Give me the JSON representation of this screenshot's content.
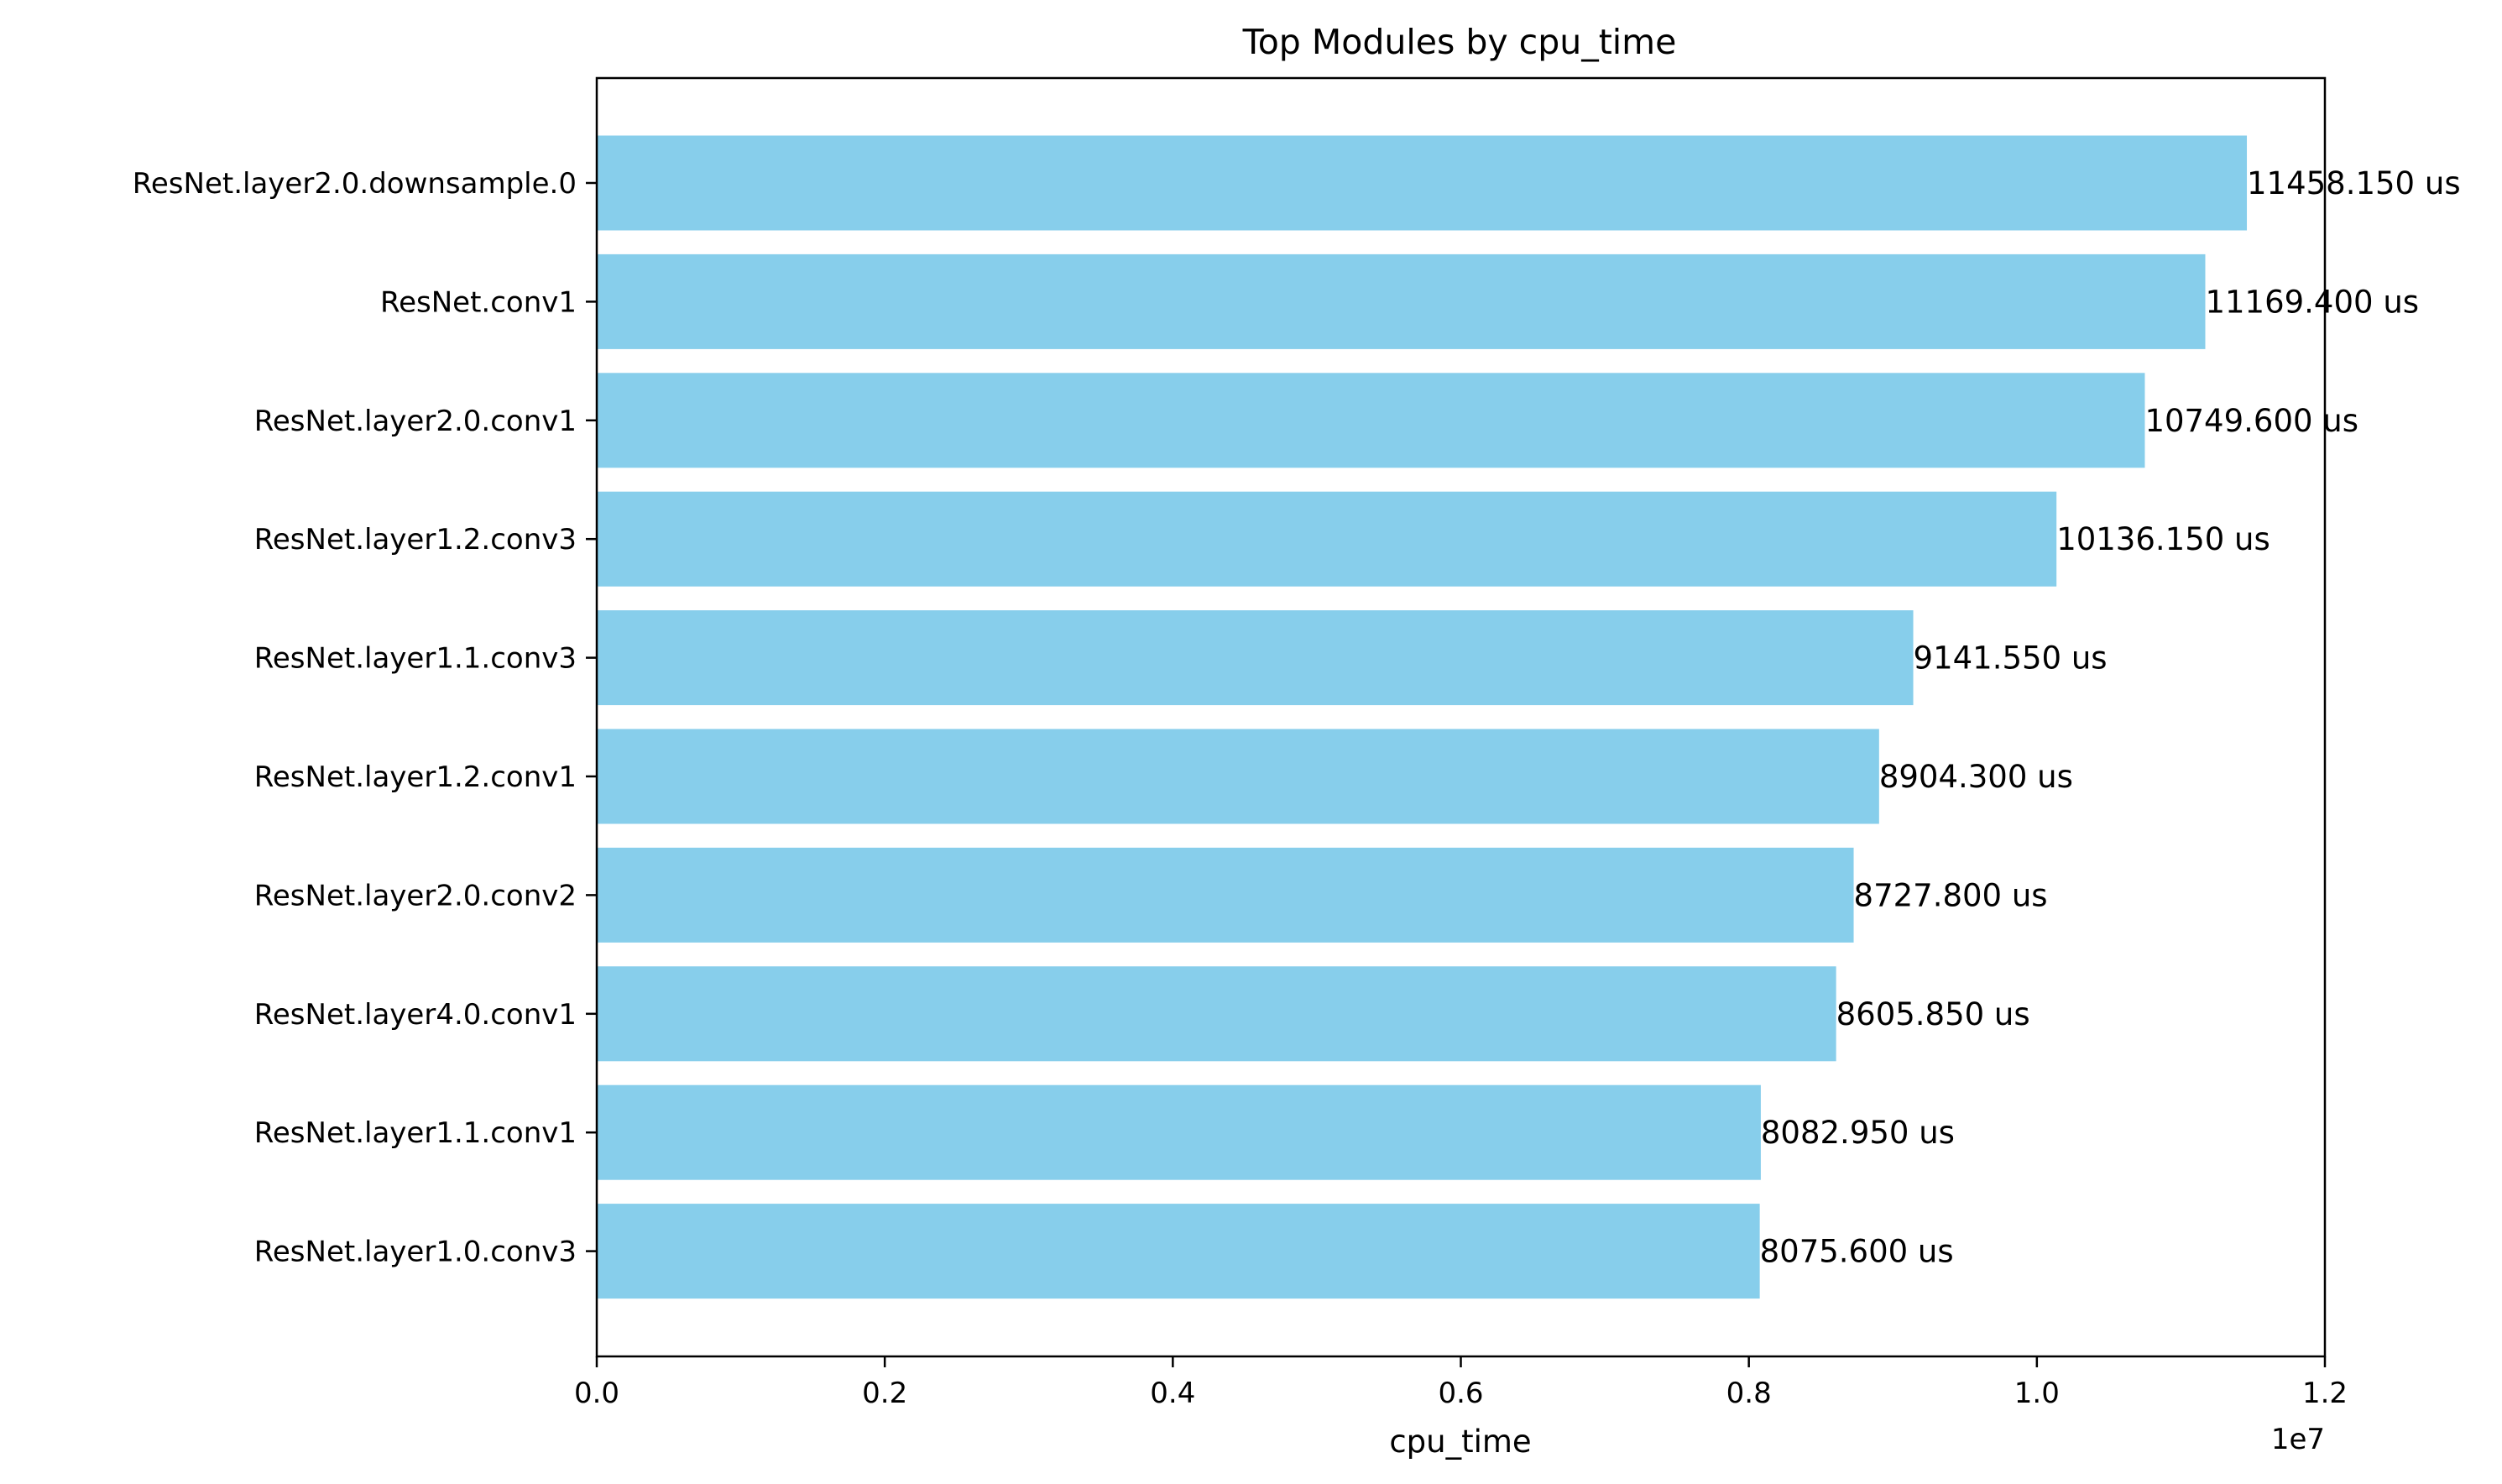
{
  "chart_data": {
    "type": "bar",
    "orientation": "horizontal",
    "title": "Top Modules by cpu_time",
    "xlabel": "cpu_time",
    "ylabel": "",
    "x_scale_note": "1e7",
    "xlim": [
      0,
      1.2
    ],
    "x_ticks": [
      0.0,
      0.2,
      0.4,
      0.6,
      0.8,
      1.0,
      1.2
    ],
    "x_tick_labels": [
      "0.0",
      "0.2",
      "0.4",
      "0.6",
      "0.8",
      "1.0",
      "1.2"
    ],
    "bar_color": "#87CEEB",
    "grid": false,
    "categories": [
      "ResNet.layer2.0.downsample.0",
      "ResNet.conv1",
      "ResNet.layer2.0.conv1",
      "ResNet.layer1.2.conv3",
      "ResNet.layer1.1.conv3",
      "ResNet.layer1.2.conv1",
      "ResNet.layer2.0.conv2",
      "ResNet.layer4.0.conv1",
      "ResNet.layer1.1.conv1",
      "ResNet.layer1.0.conv3"
    ],
    "values": [
      1.145815,
      1.11694,
      1.07496,
      1.013615,
      0.914155,
      0.89043,
      0.87278,
      0.860585,
      0.808295,
      0.80756
    ],
    "value_labels": [
      "11458.150 us",
      "11169.400 us",
      "10749.600 us",
      "10136.150 us",
      "9141.550 us",
      "8904.300 us",
      "8727.800 us",
      "8605.850 us",
      "8082.950 us",
      "8075.600 us"
    ]
  }
}
